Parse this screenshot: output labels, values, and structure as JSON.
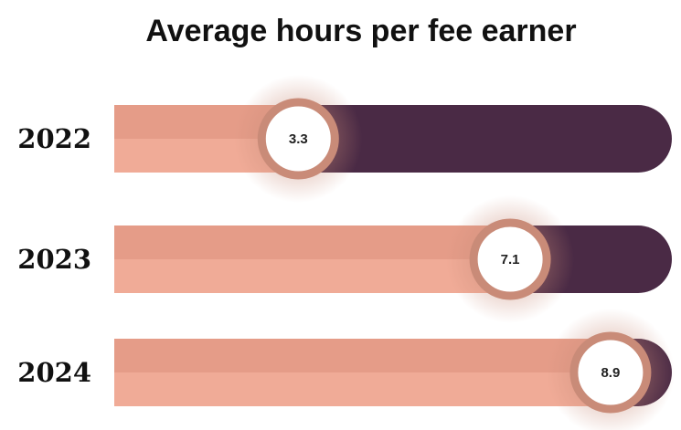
{
  "chart_data": {
    "type": "bar",
    "title": "Average hours per fee earner",
    "categories": [
      "2022",
      "2023",
      "2024"
    ],
    "values": [
      3.3,
      7.1,
      8.9
    ],
    "color": "#e59c88",
    "track_color": "#4a2a45",
    "xlim": [
      0,
      10
    ]
  }
}
